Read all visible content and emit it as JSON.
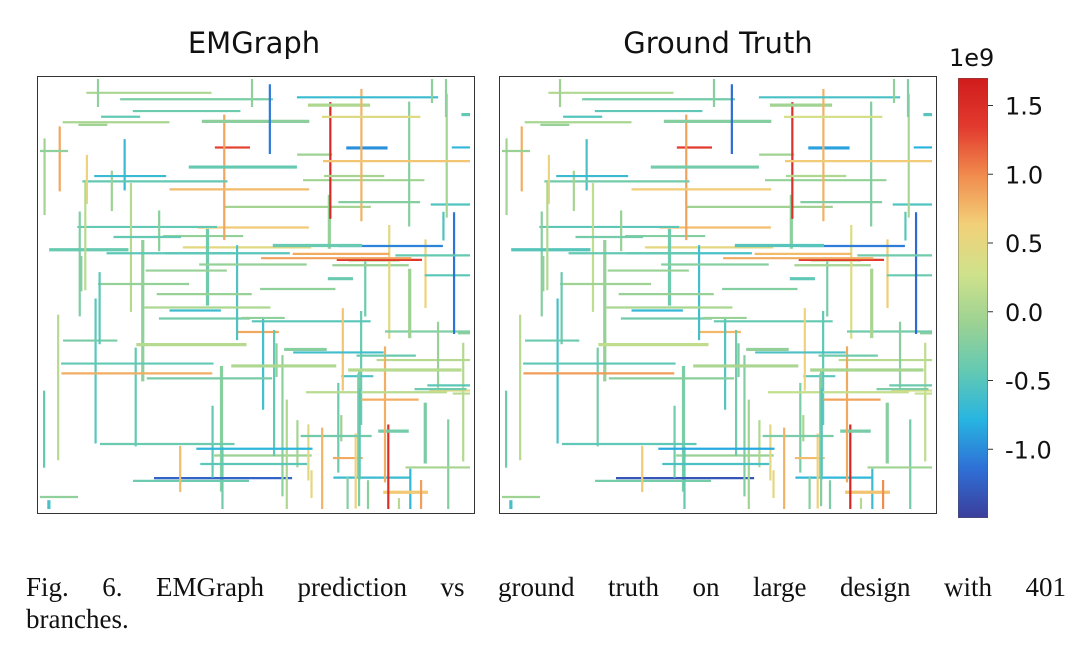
{
  "figure": {
    "panels": [
      {
        "title": "EMGraph"
      },
      {
        "title": "Ground Truth"
      }
    ],
    "colorbar": {
      "exponent_label": "1e9",
      "min": -1.5,
      "max": 1.7,
      "ticks": [
        "1.5",
        "1.0",
        "0.5",
        "0.0",
        "-0.5",
        "-1.0"
      ],
      "tick_values": [
        1.5,
        1.0,
        0.5,
        0.0,
        -0.5,
        -1.0
      ],
      "colormap": [
        "#3b3e9b",
        "#2f6fd6",
        "#27b4e0",
        "#63c9b3",
        "#9dd293",
        "#cfe28b",
        "#f2d079",
        "#f18c4e",
        "#e23a2e",
        "#d01c1c"
      ]
    },
    "caption_line1": "Fig. 6.  EMGraph prediction vs ground truth on large design with 401",
    "caption_line2": "branches."
  }
}
